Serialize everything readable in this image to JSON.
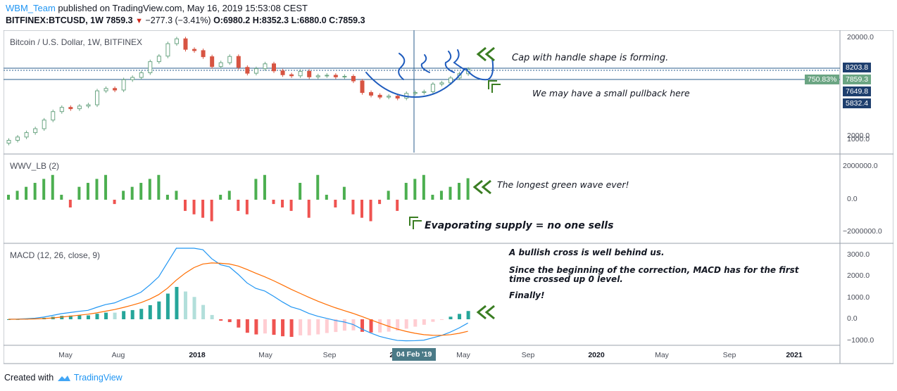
{
  "header": {
    "publisher": "WBM_Team",
    "published_text": " published on TradingView.com, May 16, 2019 15:53:08 CEST",
    "symbol": "BITFINEX:BTCUSD, 1W",
    "last": "7859.3",
    "change": "−277.3 (−3.41%)",
    "open": "O:6980.2",
    "high": "H:8352.3",
    "low": "L:6880.0",
    "close": "C:7859.3"
  },
  "panes": {
    "price": {
      "label": "Bitcoin / U.S. Dollar, 1W, BITFINEX",
      "yticks": [
        "20000.0",
        "2000.0",
        "1000.0"
      ],
      "boxes": {
        "level_high": "8203.8",
        "percent": "750.83%",
        "last": "7859.3",
        "level_mid": "7649.8",
        "level_low": "5832.4"
      }
    },
    "wwv": {
      "label": "WWV_LB (2)",
      "yticks": [
        "2000000.0",
        "0.0",
        "−2000000.0"
      ]
    },
    "macd": {
      "label": "MACD (12, 26, close, 9)",
      "yticks": [
        "3000.0",
        "2000.0",
        "1000.0",
        "0.0",
        "−1000.0"
      ]
    }
  },
  "xaxis": {
    "labels": [
      "May",
      "Aug",
      "2018",
      "May",
      "Sep",
      "2019",
      "May",
      "Sep",
      "2020",
      "May",
      "Sep",
      "2021"
    ],
    "crosshair_date": "04 Feb '19"
  },
  "annotations": {
    "cap": "Cap with handle shape is forming.",
    "pullback": "We may have a small pullback here",
    "green_wave": "The longest green wave ever!",
    "supply": "Evaporating supply = no one sells",
    "macd_1": "A bullish cross is well behind us.",
    "macd_2a": "Since the beginning of the correction, MACD has for the first",
    "macd_2b": "time crossed up 0 level.",
    "macd_3": "Finally!"
  },
  "footer": {
    "created_with": "Created with",
    "brand": "TradingView"
  },
  "colors": {
    "up": "#6ba583",
    "down": "#d75442",
    "wwv_up": "#4caf50",
    "wwv_down": "#ef5350",
    "macd_line": "#2196f3",
    "signal_line": "#ff6d00",
    "teal": "#26a69a",
    "teal_light": "#b2dfdb",
    "red": "#ef5350",
    "red_light": "#ffcdd2",
    "draw": "#1e5bbd",
    "arrow": "#3a7d22"
  },
  "icons": {
    "annotation_arrow": "double-chevron-left-icon",
    "up_arrow": "up-chevron-icon",
    "logo": "tradingview-cloud-icon",
    "down_triangle": "down-triangle-icon"
  },
  "chart_data": {
    "type": "candlestick",
    "title": "Bitcoin / U.S. Dollar, 1W, BITFINEX",
    "x_range": [
      "2017-03",
      "2021-03"
    ],
    "price_log_scale": true,
    "price_series_approx_close": [
      1000,
      1100,
      1250,
      1400,
      1800,
      2300,
      2600,
      2500,
      2700,
      2800,
      4200,
      4500,
      4300,
      5800,
      6200,
      7100,
      9800,
      11500,
      16500,
      19000,
      14000,
      13500,
      11300,
      8500,
      9500,
      11400,
      8300,
      7000,
      8000,
      9200,
      7500,
      6700,
      6500,
      7400,
      6300,
      6500,
      6600,
      6300,
      6400,
      5600,
      4000,
      3700,
      3500,
      3600,
      3400,
      3900,
      4000,
      4100,
      5100,
      5300,
      6100,
      6900,
      7859.3
    ],
    "price_lines": [
      8203.8,
      7649.8,
      5832.4
    ],
    "wwv_last": 1300000,
    "macd": {
      "fast": 12,
      "slow": 26,
      "source": "close",
      "signal": 9
    }
  }
}
